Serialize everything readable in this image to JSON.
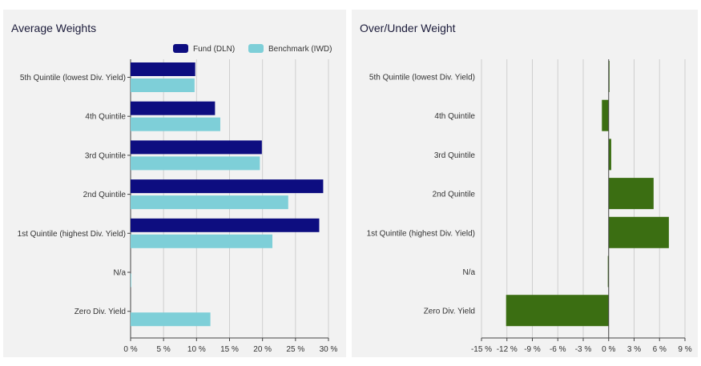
{
  "chart_data": [
    {
      "type": "bar",
      "orientation": "horizontal",
      "title": "Average Weights",
      "categories": [
        "5th Quintile (lowest Div. Yield)",
        "4th Quintile",
        "3rd Quintile",
        "2nd Quintile",
        "1st Quintile (highest Div. Yield)",
        "N/a",
        "Zero Div. Yield"
      ],
      "series": [
        {
          "name": "Fund (DLN)",
          "color": "#0d0d80",
          "values": [
            9.8,
            12.8,
            19.9,
            29.2,
            28.6,
            0,
            0
          ]
        },
        {
          "name": "Benchmark (IWD)",
          "color": "#7ecfd8",
          "values": [
            9.7,
            13.6,
            19.6,
            23.9,
            21.5,
            0.1,
            12.1
          ]
        }
      ],
      "xlim": [
        0,
        30
      ],
      "xticks": [
        "0 %",
        "5 %",
        "10 %",
        "15 %",
        "20 %",
        "25 %",
        "30 %"
      ],
      "xtick_values": [
        0,
        5,
        10,
        15,
        20,
        25,
        30
      ],
      "grid": true,
      "legend": "top-right"
    },
    {
      "type": "bar",
      "orientation": "horizontal",
      "title": "Over/Under Weight",
      "categories": [
        "5th Quintile (lowest Div. Yield)",
        "4th Quintile",
        "3rd Quintile",
        "2nd Quintile",
        "1st Quintile (highest Div. Yield)",
        "N/a",
        "Zero Div. Yield"
      ],
      "series": [
        {
          "color": "#3b6e12",
          "values": [
            0.1,
            -0.8,
            0.3,
            5.3,
            7.1,
            -0.1,
            -12.1
          ]
        }
      ],
      "xlim": [
        -15,
        9
      ],
      "xticks": [
        "-15 %",
        "-12 %",
        "-9 %",
        "-6 %",
        "-3 %",
        "0 %",
        "3 %",
        "6 %",
        "9 %"
      ],
      "xtick_values": [
        -15,
        -12,
        -9,
        -6,
        -3,
        0,
        3,
        6,
        9
      ],
      "grid": true
    }
  ]
}
